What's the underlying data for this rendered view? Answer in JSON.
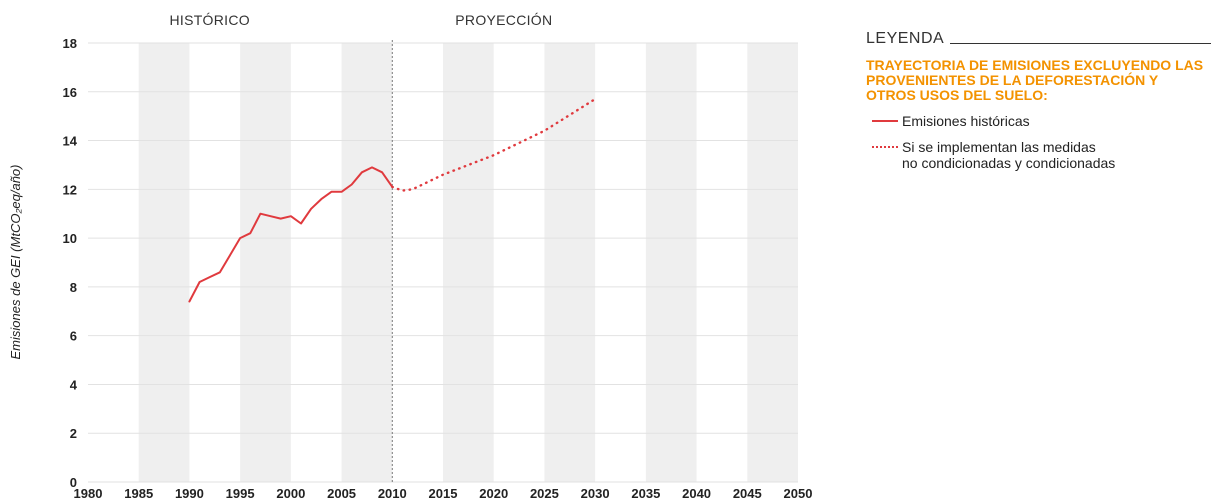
{
  "colors": {
    "series": "#e03a3e",
    "legend_subtitle": "#f39200",
    "band": "#efefef",
    "grid": "#e2e2e2"
  },
  "legend": {
    "title": "LEYENDA",
    "subtitle": "TRAYECTORIA DE EMISIONES EXCLUYENDO LAS PROVENIENTES DE LA DEFORESTACIÓN Y OTROS USOS DEL SUELO:",
    "items": [
      {
        "label": "Emisiones históricas",
        "style": "solid"
      },
      {
        "label": "Si se implementan las medidas\nno condicionadas y condicionadas",
        "style": "dotted"
      }
    ]
  },
  "chart_data": {
    "type": "line",
    "ylabel": "Emisiones de GEI (MtCO₂eq/año)",
    "xlim": [
      1980,
      2050
    ],
    "ylim": [
      0,
      18
    ],
    "x_ticks": [
      1980,
      1985,
      1990,
      1995,
      2000,
      2005,
      2010,
      2015,
      2020,
      2025,
      2030,
      2035,
      2040,
      2045,
      2050
    ],
    "y_ticks": [
      0,
      2,
      4,
      6,
      8,
      10,
      12,
      14,
      16,
      18
    ],
    "grid": true,
    "legend_position": "right",
    "periods": [
      {
        "label": "HISTÓRICO",
        "center_x": 1992
      },
      {
        "label": "PROYECCIÓN",
        "center_x": 2021
      }
    ],
    "divider_x": 2010,
    "series": [
      {
        "name": "Emisiones históricas",
        "style": "solid",
        "x": [
          1990,
          1991,
          1992,
          1993,
          1994,
          1995,
          1996,
          1997,
          1998,
          1999,
          2000,
          2001,
          2002,
          2003,
          2004,
          2005,
          2006,
          2007,
          2008,
          2009,
          2010
        ],
        "y": [
          7.4,
          8.2,
          8.4,
          8.6,
          9.3,
          10.0,
          10.2,
          11.0,
          10.9,
          10.8,
          10.9,
          10.6,
          11.2,
          11.6,
          11.9,
          11.9,
          12.2,
          12.7,
          12.9,
          12.7,
          12.1
        ]
      },
      {
        "name": "Si se implementan las medidas no condicionadas y condicionadas",
        "style": "dotted",
        "x": [
          2010,
          2011,
          2012,
          2015,
          2020,
          2025,
          2030
        ],
        "y": [
          12.1,
          11.95,
          12.0,
          12.6,
          13.4,
          14.4,
          15.7
        ]
      }
    ]
  }
}
